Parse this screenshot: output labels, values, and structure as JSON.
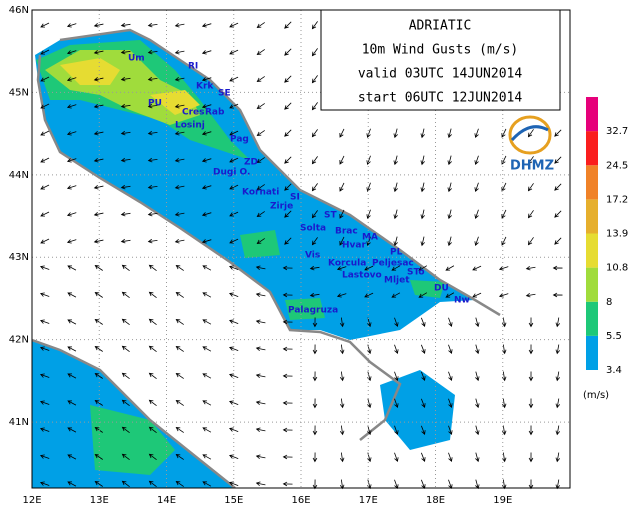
{
  "title_lines": [
    "ADRIATIC",
    "10m Wind Gusts (m/s)",
    "valid 03UTC 14JUN2014",
    "start 06UTC 12JUN2014"
  ],
  "map": {
    "xlim": [
      12,
      20
    ],
    "ylim": [
      40.2,
      46
    ],
    "xticks": [
      {
        "value": 12,
        "label": "12E"
      },
      {
        "value": 13,
        "label": "13E"
      },
      {
        "value": 14,
        "label": "14E"
      },
      {
        "value": 15,
        "label": "15E"
      },
      {
        "value": 16,
        "label": "16E"
      },
      {
        "value": 17,
        "label": "17E"
      },
      {
        "value": 18,
        "label": "18E"
      },
      {
        "value": 19,
        "label": "19E"
      }
    ],
    "yticks": [
      {
        "value": 46,
        "label": "46N"
      },
      {
        "value": 45,
        "label": "45N"
      },
      {
        "value": 44,
        "label": "44N"
      },
      {
        "value": 43,
        "label": "43N"
      },
      {
        "value": 42,
        "label": "42N"
      },
      {
        "value": 41,
        "label": "41N"
      }
    ],
    "places": [
      "Um",
      "RI",
      "Krk",
      "SE",
      "PU",
      "Cres",
      "Rab",
      "Losinj",
      "Pag",
      "ZD",
      "Dugi O.",
      "Kornati",
      "SI",
      "Zirje",
      "ST",
      "Solta",
      "Brac",
      "MA",
      "Hvar",
      "PL",
      "Vis",
      "Korcula",
      "Peljesac",
      "Lastovo",
      "Mljet",
      "STo",
      "DU",
      "Nw",
      "Palagruza"
    ]
  },
  "colorbar": {
    "levels": [
      3.4,
      5.5,
      8,
      10.8,
      13.9,
      17.2,
      24.5,
      32.7
    ],
    "colors": [
      "#00a0e6",
      "#1ec878",
      "#a0dc3c",
      "#e6dc32",
      "#e6af2d",
      "#f08228",
      "#fa1e1e",
      "#e6007a"
    ],
    "unit": "(m/s)"
  },
  "logo": "DHMZ"
}
